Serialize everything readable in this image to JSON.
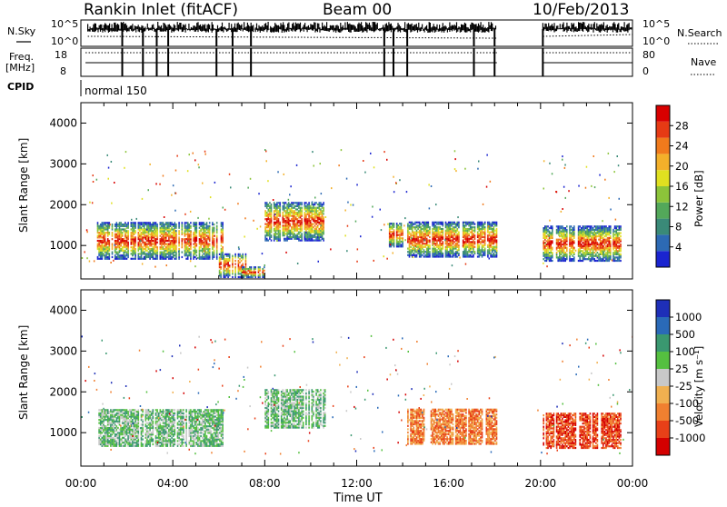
{
  "header": {
    "station": "Rankin Inlet (fitACF)",
    "beam": "Beam 00",
    "date": "10/Feb/2013"
  },
  "top_panels": {
    "nsky_label": "N.Sky",
    "nsky_ticks": [
      "10^5",
      "10^0"
    ],
    "nsearch_label": "N.Search",
    "nsearch_ticks": [
      "10^5",
      "10^0"
    ],
    "freq_label": "Freq.",
    "freq_unit": "[MHz]",
    "freq_ticks": [
      "18",
      "8"
    ],
    "nave_label": "Nave",
    "nave_ticks": [
      "80",
      "0"
    ],
    "cpid_label": "CPID",
    "cpid_value": "normal 150"
  },
  "chart_data": [
    {
      "type": "heatmap",
      "name": "power-panel",
      "ylabel": "Slant Range [km]",
      "yticks": [
        "4000",
        "3000",
        "2000",
        "1000"
      ],
      "ylim": [
        180,
        4500
      ],
      "xlim": [
        "00:00",
        "24:00"
      ],
      "colorbar_label": "Power [dB]",
      "colorbar_ticks": [
        "28",
        "24",
        "20",
        "16",
        "12",
        "8",
        "4"
      ],
      "colorbar_range": [
        0,
        32
      ],
      "colors": [
        "#1a24d0",
        "#2d6ab4",
        "#3a8a78",
        "#53a85a",
        "#8cc43a",
        "#e0e020",
        "#f3b02a",
        "#f07a1c",
        "#e63a14",
        "#d80000"
      ],
      "blocks": [
        {
          "t": [
            0.7,
            6.2
          ],
          "r": [
            650,
            1550
          ],
          "v": 17
        },
        {
          "t": [
            6.0,
            7.2
          ],
          "r": [
            200,
            800
          ],
          "v": 19
        },
        {
          "t": [
            7.0,
            8.0
          ],
          "r": [
            200,
            450
          ],
          "v": 16
        },
        {
          "t": [
            8.0,
            10.6
          ],
          "r": [
            1100,
            2050
          ],
          "v": 11
        },
        {
          "t": [
            13.4,
            14.0
          ],
          "r": [
            950,
            1550
          ],
          "v": 16
        },
        {
          "t": [
            14.2,
            18.1
          ],
          "r": [
            700,
            1550
          ],
          "v": 18
        },
        {
          "t": [
            20.1,
            23.5
          ],
          "r": [
            600,
            1450
          ],
          "v": 18
        }
      ]
    },
    {
      "type": "heatmap",
      "name": "velocity-panel",
      "ylabel": "Slant Range [km]",
      "yticks": [
        "4000",
        "3000",
        "2000",
        "1000"
      ],
      "ylim": [
        180,
        4500
      ],
      "xlim": [
        "00:00",
        "24:00"
      ],
      "xticks": [
        "00:00",
        "04:00",
        "08:00",
        "12:00",
        "16:00",
        "20:00",
        "00:00"
      ],
      "xlabel": "Time UT",
      "colorbar_label": "Velocity [m s⁻¹]",
      "colorbar_ticks": [
        "1000",
        "500",
        "100",
        "25",
        "-25",
        "-100",
        "-500",
        "-1000"
      ],
      "colors": [
        "#1e2fb8",
        "#2a6ab8",
        "#3a9870",
        "#55c040",
        "#c8c8c8",
        "#f0b050",
        "#f08030",
        "#e84018",
        "#d40000"
      ],
      "blocks": [
        {
          "t": [
            0.7,
            6.2
          ],
          "r": [
            650,
            1550
          ],
          "v": 120
        },
        {
          "t": [
            8.0,
            10.6
          ],
          "r": [
            1100,
            2050
          ],
          "v": 80
        },
        {
          "t": [
            14.2,
            18.1
          ],
          "r": [
            700,
            1550
          ],
          "v": -400
        },
        {
          "t": [
            20.1,
            23.5
          ],
          "r": [
            600,
            1450
          ],
          "v": -500
        }
      ]
    }
  ]
}
